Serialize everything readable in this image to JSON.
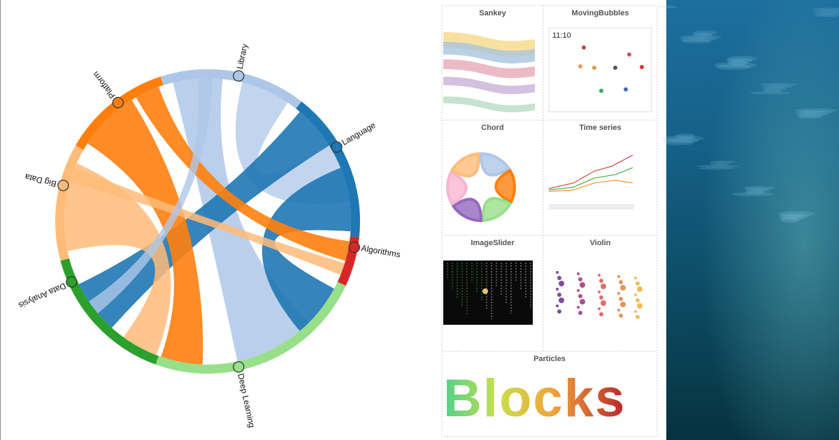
{
  "chord": {
    "nodes": [
      {
        "label": "Library",
        "color": "#aec7e8"
      },
      {
        "label": "Language",
        "color": "#1f77b4"
      },
      {
        "label": "Algorithms",
        "color": "#d62728"
      },
      {
        "label": "Deep Learning",
        "color": "#98df8a"
      },
      {
        "label": "Data Analysis",
        "color": "#2ca02c"
      },
      {
        "label": "Big Data",
        "color": "#ffbb78"
      },
      {
        "label": "Platform",
        "color": "#ff7f0e"
      }
    ]
  },
  "gallery": {
    "tiles": [
      {
        "title": "Sankey"
      },
      {
        "title": "MovingBubbles"
      },
      {
        "title": "Chord"
      },
      {
        "title": "Time series"
      },
      {
        "title": "ImageSlider"
      },
      {
        "title": "Violin"
      },
      {
        "title": "Particles"
      }
    ],
    "clock": "11:10",
    "particles_text": "Blocks"
  }
}
